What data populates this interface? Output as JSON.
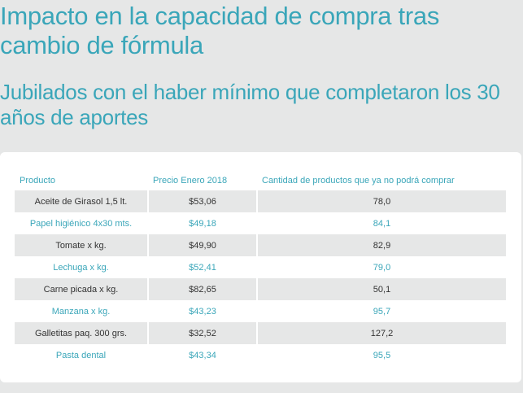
{
  "title": "Impacto en la capacidad de compra tras cambio de fórmula",
  "subtitle": "Jubilados con el haber mínimo que completaron los 30 años de aportes",
  "colors": {
    "accent": "#3aa6b9",
    "stripe": "#e6e7e7",
    "text": "#333333"
  },
  "chart_data": {
    "type": "table",
    "title": "Impacto en la capacidad de compra tras cambio de fórmula",
    "subtitle": "Jubilados con el haber mínimo que completaron los 30 años de aportes",
    "columns": [
      "Producto",
      "Precio Enero 2018",
      "Cantidad de productos que ya no podrá comprar"
    ],
    "rows": [
      [
        "Aceite de Girasol 1,5 lt.",
        "$53,06",
        "78,0"
      ],
      [
        "Papel higiénico 4x30 mts.",
        "$49,18",
        "84,1"
      ],
      [
        "Tomate x kg.",
        "$49,90",
        "82,9"
      ],
      [
        "Lechuga x kg.",
        "$52,41",
        "79,0"
      ],
      [
        "Carne picada x kg.",
        "$82,65",
        "50,1"
      ],
      [
        "Manzana x kg.",
        "$43,23",
        "95,7"
      ],
      [
        "Galletitas paq. 300 grs.",
        "$32,52",
        "127,2"
      ],
      [
        "Pasta dental",
        "$43,34",
        "95,5"
      ]
    ]
  }
}
